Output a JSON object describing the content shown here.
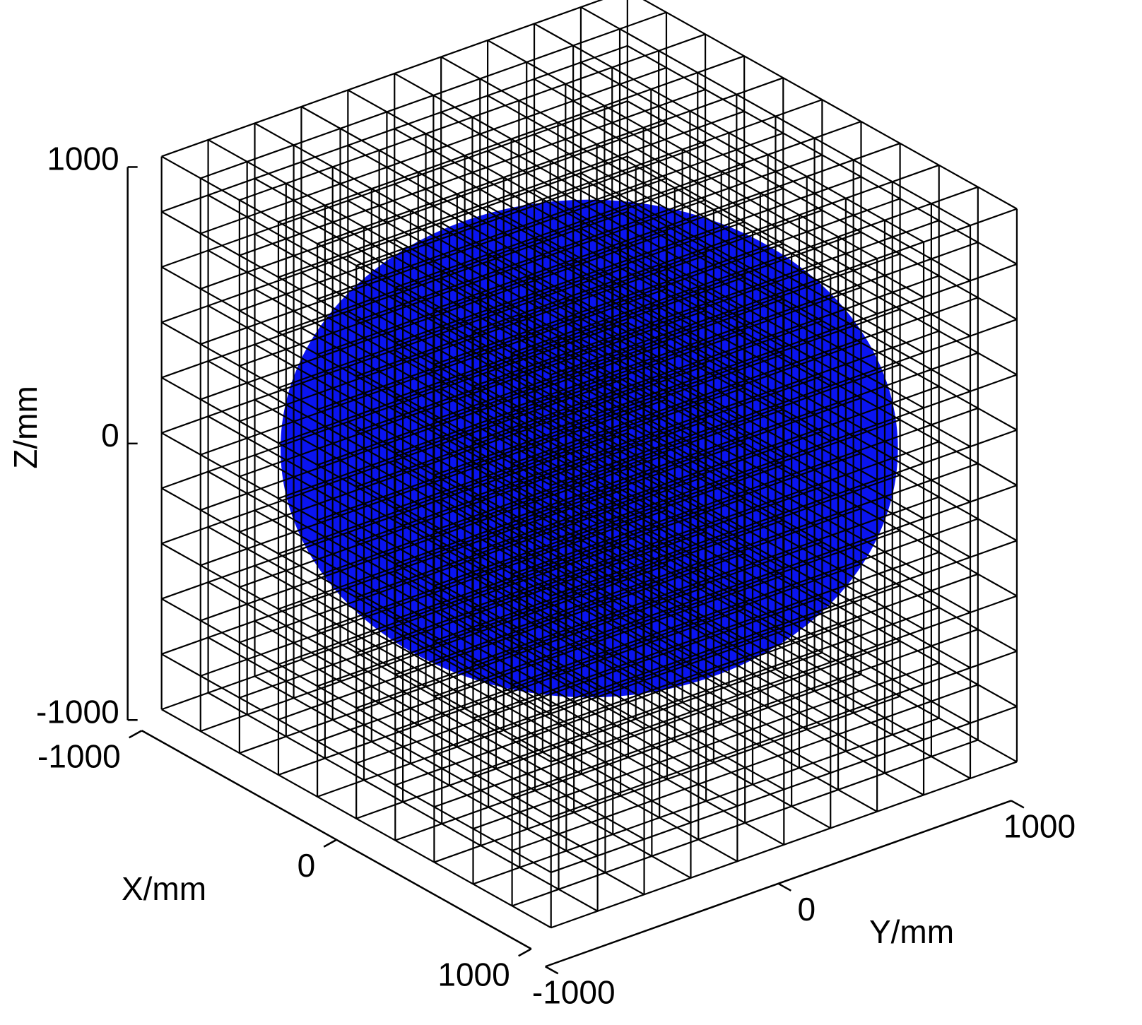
{
  "chart_data": {
    "type": "sphere3d",
    "xlabel": "X/mm",
    "ylabel": "Y/mm",
    "zlabel": "Z/mm",
    "xlim": [
      -1000,
      1000
    ],
    "ylim": [
      -1000,
      1000
    ],
    "zlim": [
      -1000,
      1000
    ],
    "xticks": [
      -1000,
      0,
      1000
    ],
    "yticks": [
      -1000,
      0,
      1000
    ],
    "zticks": [
      -1000,
      0,
      1000
    ],
    "sphere": {
      "center": [
        0,
        0,
        0
      ],
      "radius": 900
    },
    "color": "#0a14f0",
    "grid": true
  }
}
